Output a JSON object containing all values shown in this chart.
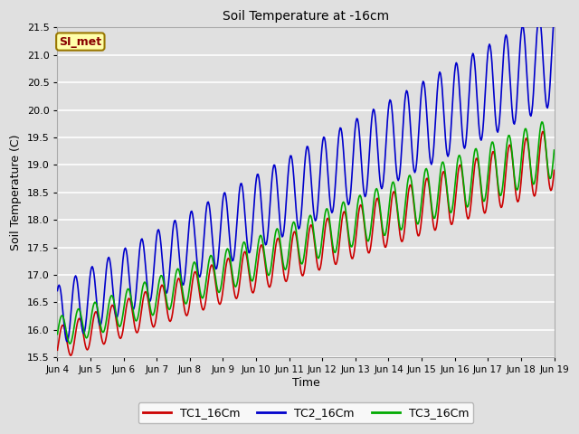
{
  "title": "Soil Temperature at -16cm",
  "xlabel": "Time",
  "ylabel": "Soil Temperature (C)",
  "ylim": [
    15.5,
    21.5
  ],
  "xlim_days": [
    4,
    19
  ],
  "background_color": "#e0e0e0",
  "plot_bg_color": "#e0e0e0",
  "grid_color": "#ffffff",
  "series": {
    "TC1_16Cm": {
      "color": "#cc0000",
      "lw": 1.2
    },
    "TC2_16Cm": {
      "color": "#0000cc",
      "lw": 1.2
    },
    "TC3_16Cm": {
      "color": "#00aa00",
      "lw": 1.2
    }
  },
  "xtick_labels": [
    "Jun 4",
    "Jun 5",
    "Jun 6",
    "Jun 7",
    "Jun 8",
    "Jun 9",
    "Jun 10",
    "Jun 11",
    "Jun 12",
    "Jun 13",
    "Jun 14",
    "Jun 15",
    "Jun 16",
    "Jun 17",
    "Jun 18",
    "Jun 19"
  ],
  "xtick_positions": [
    4,
    5,
    6,
    7,
    8,
    9,
    10,
    11,
    12,
    13,
    14,
    15,
    16,
    17,
    18,
    19
  ],
  "ytick_labels": [
    "15.5",
    "16.0",
    "16.5",
    "17.0",
    "17.5",
    "18.0",
    "18.5",
    "19.0",
    "19.5",
    "20.0",
    "20.5",
    "21.0",
    "21.5"
  ],
  "ytick_positions": [
    15.5,
    16.0,
    16.5,
    17.0,
    17.5,
    18.0,
    18.5,
    19.0,
    19.5,
    20.0,
    20.5,
    21.0,
    21.5
  ],
  "annotation_text": "SI_met",
  "annotation_bg": "#ffffaa",
  "annotation_border": "#997700",
  "annotation_text_color": "#880000",
  "figsize": [
    6.4,
    4.8
  ],
  "dpi": 100
}
